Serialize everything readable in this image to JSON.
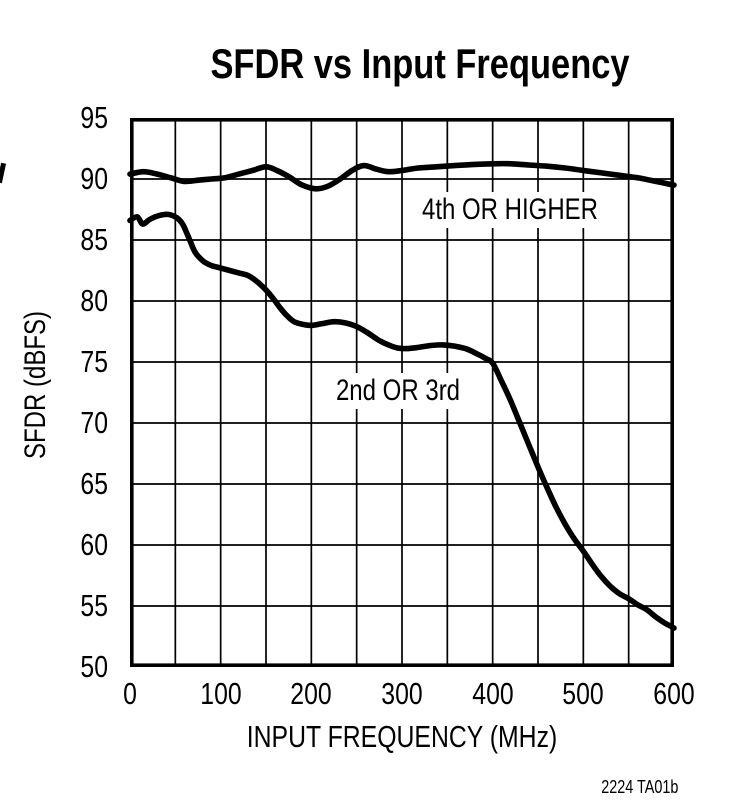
{
  "figure": {
    "background": "#ffffff",
    "ink_color": "#000000"
  },
  "footnote": "2224 TA01b",
  "chart_data": {
    "type": "line",
    "title": "SFDR vs Input Frequency",
    "xlabel": "INPUT FREQUENCY (MHz)",
    "ylabel": "SFDR (dBFS)",
    "xlim": [
      0,
      600
    ],
    "ylim": [
      50,
      95
    ],
    "xticks": [
      0,
      100,
      200,
      300,
      400,
      500,
      600
    ],
    "yticks": [
      50,
      55,
      60,
      65,
      70,
      75,
      80,
      85,
      90,
      95
    ],
    "x_gridline_step": 50,
    "y_gridline_step": 5,
    "grid": true,
    "grid_color": "#000000",
    "axis_color": "#000000",
    "legend_position": "inline-annotations",
    "annotations": [
      {
        "text": "4th OR HIGHER",
        "x": 419,
        "y": 87.45
      },
      {
        "text": "2nd OR 3rd",
        "x": 296,
        "y": 72.6
      }
    ],
    "series": [
      {
        "name": "4th OR HIGHER",
        "color": "#000000",
        "points": [
          [
            0,
            90.4
          ],
          [
            15,
            90.6
          ],
          [
            30,
            90.4
          ],
          [
            45,
            90.1
          ],
          [
            60,
            89.8
          ],
          [
            75,
            89.9
          ],
          [
            90,
            90.0
          ],
          [
            105,
            90.1
          ],
          [
            120,
            90.4
          ],
          [
            135,
            90.7
          ],
          [
            150,
            91.0
          ],
          [
            162,
            90.7
          ],
          [
            175,
            90.2
          ],
          [
            190,
            89.5
          ],
          [
            205,
            89.2
          ],
          [
            218,
            89.4
          ],
          [
            232,
            90.0
          ],
          [
            245,
            90.7
          ],
          [
            258,
            91.1
          ],
          [
            272,
            90.8
          ],
          [
            285,
            90.6
          ],
          [
            300,
            90.7
          ],
          [
            318,
            90.9
          ],
          [
            338,
            91.0
          ],
          [
            358,
            91.1
          ],
          [
            380,
            91.2
          ],
          [
            400,
            91.25
          ],
          [
            420,
            91.25
          ],
          [
            440,
            91.15
          ],
          [
            460,
            91.05
          ],
          [
            480,
            90.9
          ],
          [
            500,
            90.7
          ],
          [
            520,
            90.5
          ],
          [
            540,
            90.3
          ],
          [
            560,
            90.1
          ],
          [
            580,
            89.8
          ],
          [
            600,
            89.5
          ]
        ]
      },
      {
        "name": "2nd OR 3rd",
        "color": "#000000",
        "points": [
          [
            0,
            86.6
          ],
          [
            8,
            86.9
          ],
          [
            14,
            86.3
          ],
          [
            22,
            86.7
          ],
          [
            32,
            87.0
          ],
          [
            42,
            87.1
          ],
          [
            52,
            86.8
          ],
          [
            58,
            86.3
          ],
          [
            63,
            85.5
          ],
          [
            67,
            84.8
          ],
          [
            71,
            84.1
          ],
          [
            76,
            83.6
          ],
          [
            82,
            83.2
          ],
          [
            90,
            82.9
          ],
          [
            100,
            82.7
          ],
          [
            110,
            82.5
          ],
          [
            120,
            82.3
          ],
          [
            130,
            82.1
          ],
          [
            140,
            81.6
          ],
          [
            150,
            80.9
          ],
          [
            158,
            80.2
          ],
          [
            166,
            79.4
          ],
          [
            173,
            78.8
          ],
          [
            181,
            78.3
          ],
          [
            190,
            78.1
          ],
          [
            200,
            78.0
          ],
          [
            212,
            78.15
          ],
          [
            225,
            78.3
          ],
          [
            238,
            78.2
          ],
          [
            250,
            77.9
          ],
          [
            262,
            77.4
          ],
          [
            274,
            76.8
          ],
          [
            285,
            76.4
          ],
          [
            295,
            76.15
          ],
          [
            305,
            76.1
          ],
          [
            318,
            76.2
          ],
          [
            332,
            76.35
          ],
          [
            345,
            76.4
          ],
          [
            358,
            76.3
          ],
          [
            370,
            76.1
          ],
          [
            382,
            75.7
          ],
          [
            392,
            75.3
          ],
          [
            400,
            74.9
          ],
          [
            410,
            73.4
          ],
          [
            420,
            71.8
          ],
          [
            430,
            70.0
          ],
          [
            440,
            68.2
          ],
          [
            450,
            66.4
          ],
          [
            460,
            64.7
          ],
          [
            470,
            63.1
          ],
          [
            480,
            61.7
          ],
          [
            490,
            60.5
          ],
          [
            500,
            59.5
          ],
          [
            510,
            58.4
          ],
          [
            520,
            57.4
          ],
          [
            530,
            56.6
          ],
          [
            540,
            56.0
          ],
          [
            550,
            55.6
          ],
          [
            560,
            55.1
          ],
          [
            570,
            54.7
          ],
          [
            580,
            54.1
          ],
          [
            590,
            53.6
          ],
          [
            600,
            53.2
          ]
        ]
      }
    ]
  }
}
